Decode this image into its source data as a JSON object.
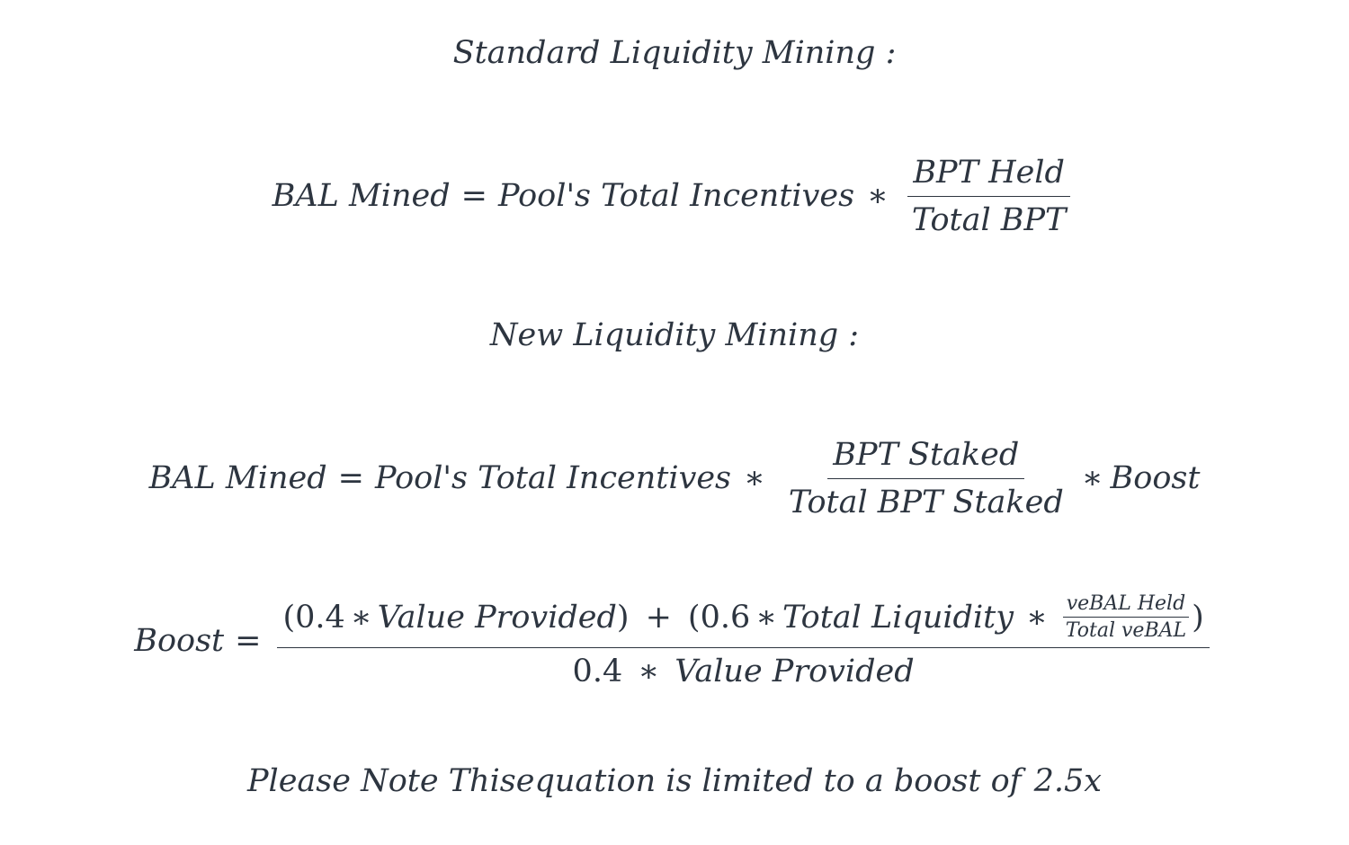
{
  "standard": {
    "heading": "Standard Liquidity Mining :",
    "lhs": "BAL Mined",
    "eq": "=",
    "term": "Pool's Total Incentives",
    "times": "∗",
    "num": "BPT Held",
    "den": "Total BPT"
  },
  "new": {
    "heading": "New Liquidity Mining :",
    "lhs": "BAL Mined",
    "eq": "=",
    "term": "Pool's Total Incentives",
    "times": "∗",
    "num": "BPT Staked",
    "den": "Total BPT Staked",
    "times2": "∗",
    "boost": "Boost"
  },
  "boost": {
    "lhs": "Boost",
    "eq": "=",
    "open1": "(",
    "coef1": "0.4",
    "times1": "∗",
    "term1": "Value Provided",
    "close1": ")",
    "plus": "+",
    "open2": "(",
    "coef2": "0.6",
    "times2": "∗",
    "term2": "Total Liquidity",
    "times3": "∗",
    "inner_num": "veBAL Held",
    "inner_den": "Total veBAL",
    "close2": ")",
    "den_coef": "0.4",
    "den_times": "∗",
    "den_term": "Value Provided"
  },
  "note": {
    "text": "Please Note Thisequation is limited to a boost of",
    "value": "2.5x"
  }
}
